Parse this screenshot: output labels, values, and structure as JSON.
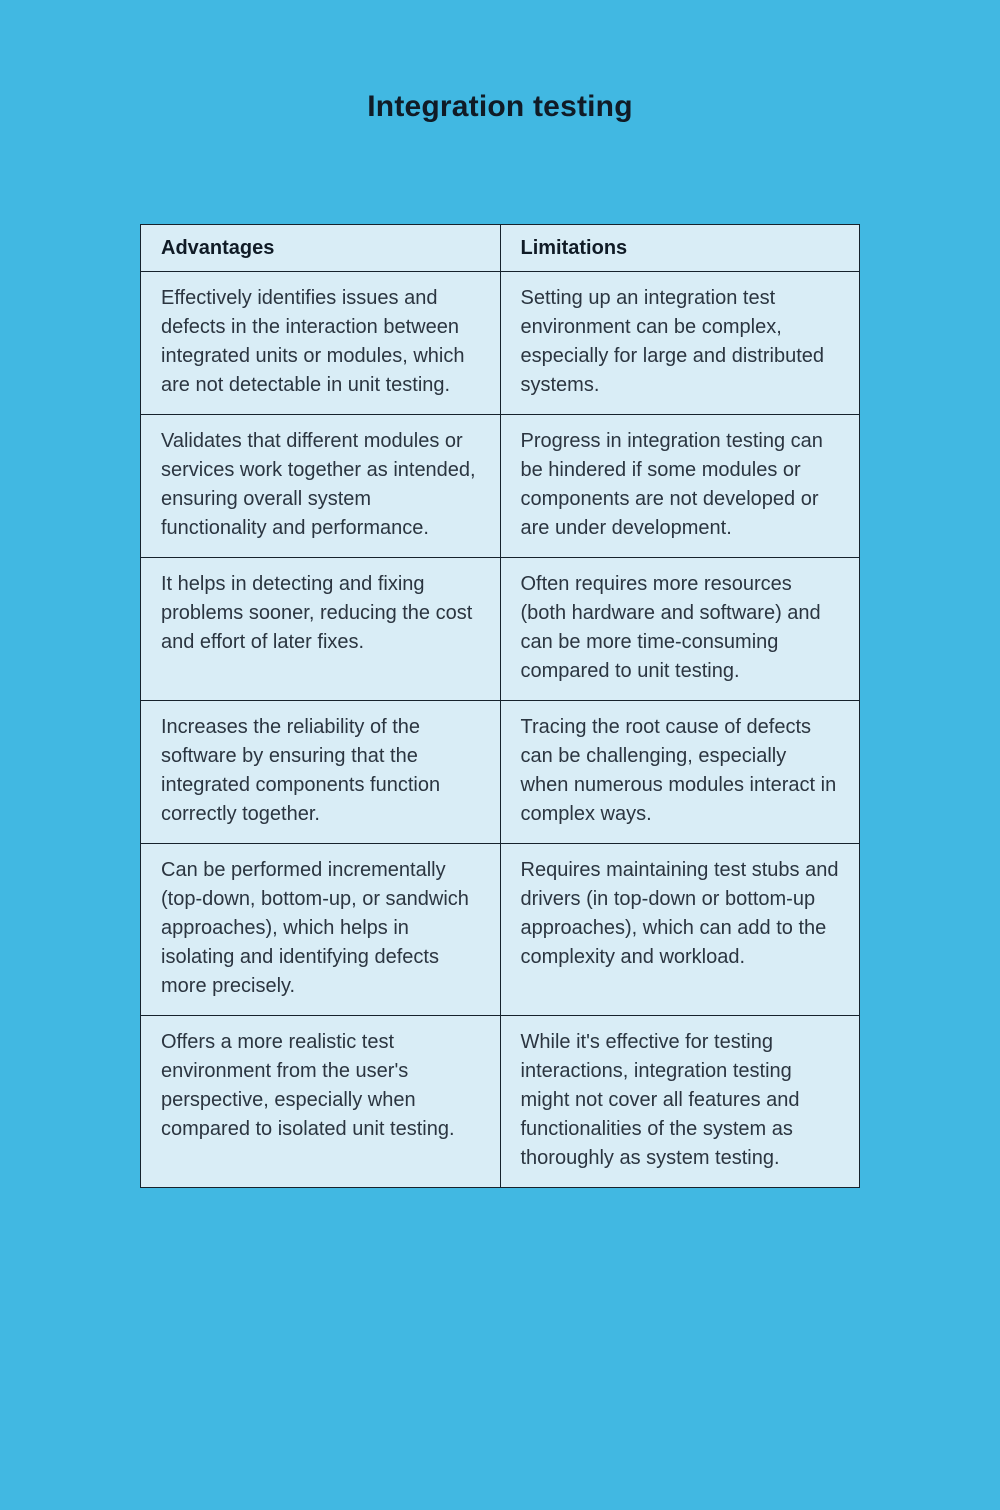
{
  "page": {
    "title": "Integration testing"
  },
  "colors": {
    "background": "#41b8e2",
    "cell_background": "#d9edf6",
    "border": "#16222c",
    "heading_text": "#101b26",
    "body_text": "#2b3540"
  },
  "table": {
    "headers": {
      "advantages": "Advantages",
      "limitations": "Limitations"
    },
    "rows": [
      {
        "advantage": "Effectively identifies issues and defects in the interaction between integrated units or modules, which are not detectable in unit testing.",
        "limitation": "Setting up an integration test environment can be complex, especially for large and distributed systems."
      },
      {
        "advantage": "Validates that different modules or services work together as intended, ensuring overall system functionality and performance.",
        "limitation": "Progress in integration testing can be hindered if some modules or components are not developed or are under development."
      },
      {
        "advantage": "It helps in detecting and fixing problems sooner, reducing the cost and effort of later fixes.",
        "limitation": "Often requires more resources (both hardware and software) and can be more time-consuming compared to unit testing."
      },
      {
        "advantage": "Increases the reliability of the software by ensuring that the integrated components function correctly together.",
        "limitation": "Tracing the root cause of defects can be challenging, especially when numerous modules interact in complex ways."
      },
      {
        "advantage": "Can be performed incrementally (top-down, bottom-up, or sandwich approaches), which helps in isolating and identifying defects more precisely.",
        "limitation": "Requires maintaining test stubs and drivers (in top-down or bottom-up approaches), which can add to the complexity and workload."
      },
      {
        "advantage": "Offers a more realistic test environment from the user's perspective, especially when compared to isolated unit testing.",
        "limitation": "While it's effective for testing interactions, integration testing might not cover all features and functionalities of the system as thoroughly as system testing."
      }
    ]
  }
}
